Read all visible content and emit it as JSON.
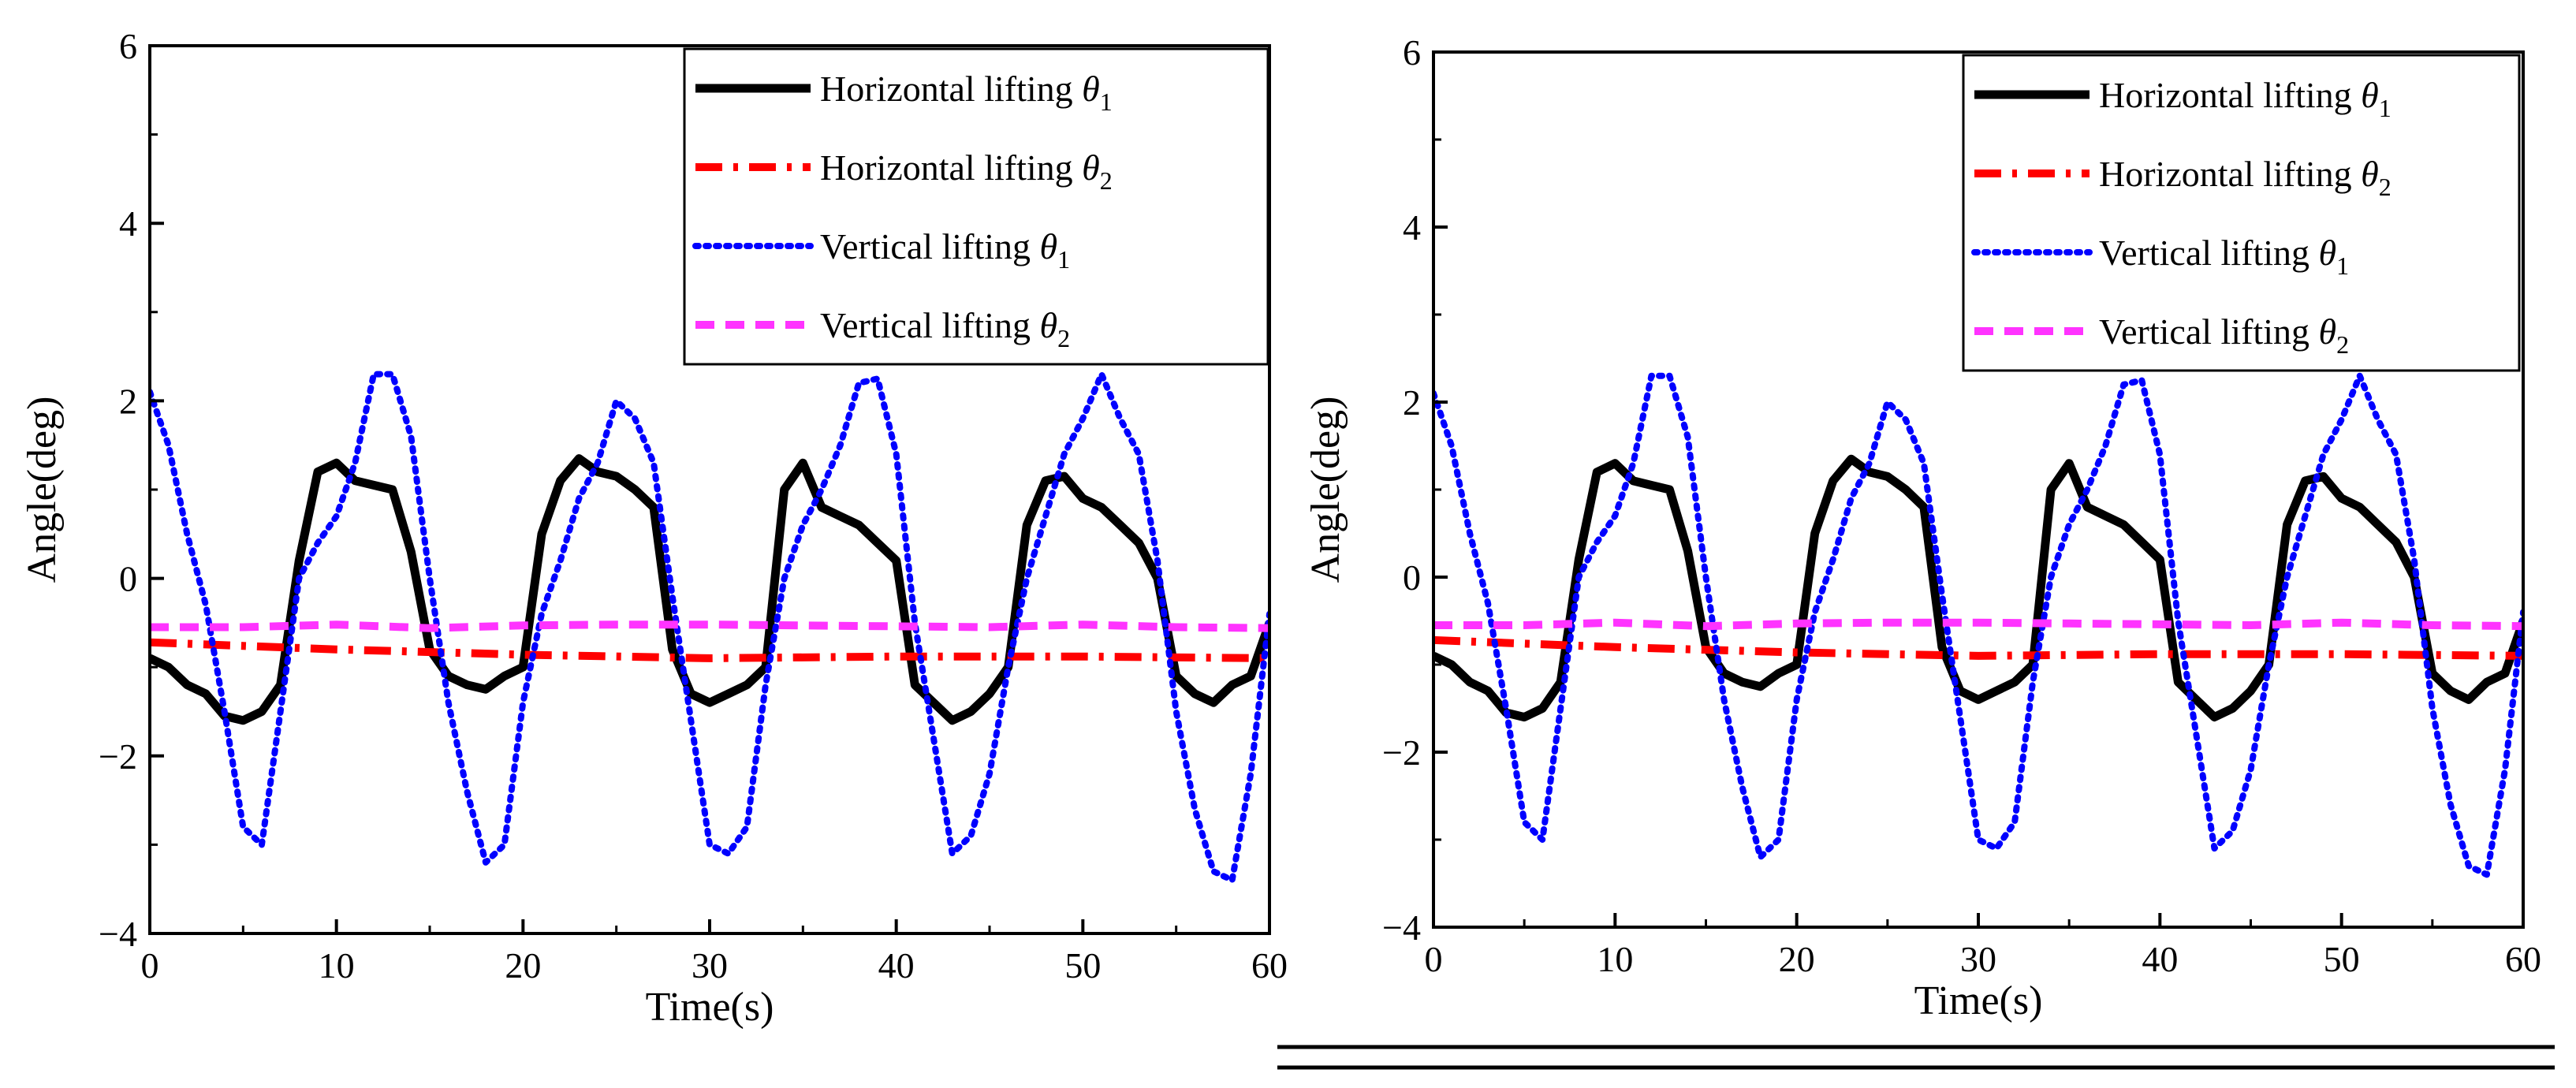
{
  "chart_data": [
    {
      "type": "line",
      "xlabel": "Time(s)",
      "ylabel": "Angle(deg)",
      "xlim": [
        0,
        60
      ],
      "ylim": [
        -4,
        6
      ],
      "xticks": [
        "0",
        "10",
        "20",
        "30",
        "40",
        "50",
        "60"
      ],
      "yticks": [
        "−4",
        "−2",
        "0",
        "2",
        "4",
        "6"
      ],
      "legend_position": "top-right",
      "series": [
        {
          "name": "Horizontal lifting",
          "symbol": "θ",
          "subscript": "1",
          "color": "#000000",
          "style": "solid",
          "x": [
            0,
            1,
            2,
            3,
            4,
            5,
            6,
            7,
            8,
            9,
            10,
            11,
            12,
            13,
            14,
            15,
            16,
            17,
            18,
            19,
            20,
            21,
            22,
            23,
            24,
            25,
            26,
            27,
            28,
            29,
            30,
            31,
            32,
            33,
            34,
            35,
            36,
            37,
            38,
            39,
            40,
            41,
            42,
            43,
            44,
            45,
            46,
            47,
            48,
            49,
            50,
            51,
            52,
            53,
            54,
            55,
            56,
            57,
            58,
            59,
            60
          ],
          "y": [
            -0.9,
            -1.0,
            -1.2,
            -1.3,
            -1.55,
            -1.6,
            -1.5,
            -1.2,
            0.2,
            1.2,
            1.3,
            1.1,
            1.05,
            1.0,
            0.3,
            -0.8,
            -1.1,
            -1.2,
            -1.25,
            -1.1,
            -1.0,
            0.5,
            1.1,
            1.35,
            1.2,
            1.15,
            1.0,
            0.8,
            -0.8,
            -1.3,
            -1.4,
            -1.3,
            -1.2,
            -1.0,
            1.0,
            1.3,
            0.8,
            0.7,
            0.6,
            0.4,
            0.2,
            -1.2,
            -1.4,
            -1.6,
            -1.5,
            -1.3,
            -1.0,
            0.6,
            1.1,
            1.15,
            0.9,
            0.8,
            0.6,
            0.4,
            0.0,
            -1.1,
            -1.3,
            -1.4,
            -1.2,
            -1.1,
            -0.5
          ]
        },
        {
          "name": "Horizontal lifting",
          "symbol": "θ",
          "subscript": "2",
          "color": "#ff0000",
          "style": "dashdot",
          "x": [
            0,
            10,
            20,
            30,
            40,
            50,
            60
          ],
          "y": [
            -0.72,
            -0.8,
            -0.86,
            -0.9,
            -0.88,
            -0.88,
            -0.9
          ]
        },
        {
          "name": "Vertical lifting",
          "symbol": "θ",
          "subscript": "1",
          "color": "#0000ff",
          "style": "dotted",
          "x": [
            0,
            1,
            2,
            3,
            4,
            5,
            6,
            7,
            8,
            9,
            10,
            11,
            12,
            13,
            14,
            15,
            16,
            17,
            18,
            19,
            20,
            21,
            22,
            23,
            24,
            25,
            26,
            27,
            28,
            29,
            30,
            31,
            32,
            33,
            34,
            35,
            36,
            37,
            38,
            39,
            40,
            41,
            42,
            43,
            44,
            45,
            46,
            47,
            48,
            49,
            50,
            51,
            52,
            53,
            54,
            55,
            56,
            57,
            58,
            59,
            60
          ],
          "y": [
            2.1,
            1.5,
            0.5,
            -0.3,
            -1.5,
            -2.8,
            -3.0,
            -1.5,
            0.0,
            0.4,
            0.7,
            1.3,
            2.3,
            2.3,
            1.6,
            0.0,
            -1.4,
            -2.4,
            -3.2,
            -3.0,
            -1.4,
            -0.4,
            0.2,
            0.9,
            1.3,
            2.0,
            1.8,
            1.3,
            -0.2,
            -1.6,
            -3.0,
            -3.1,
            -2.8,
            -1.2,
            0.0,
            0.6,
            1.0,
            1.5,
            2.2,
            2.25,
            1.4,
            -0.5,
            -1.8,
            -3.1,
            -2.9,
            -2.2,
            -1.0,
            0.0,
            0.7,
            1.4,
            1.8,
            2.3,
            1.8,
            1.4,
            0.2,
            -1.5,
            -2.6,
            -3.3,
            -3.4,
            -2.2,
            -0.4
          ]
        },
        {
          "name": "Vertical lifting",
          "symbol": "θ",
          "subscript": "2",
          "color": "#ff33ff",
          "style": "dashed",
          "x": [
            0,
            5,
            10,
            15,
            20,
            25,
            30,
            35,
            40,
            45,
            50,
            55,
            60
          ],
          "y": [
            -0.55,
            -0.55,
            -0.52,
            -0.56,
            -0.53,
            -0.52,
            -0.52,
            -0.53,
            -0.54,
            -0.55,
            -0.52,
            -0.55,
            -0.56
          ]
        }
      ]
    },
    {
      "type": "line",
      "xlabel": "Time(s)",
      "ylabel": "Angle(deg)",
      "xlim": [
        0,
        60
      ],
      "ylim": [
        -4,
        6
      ],
      "xticks": [
        "0",
        "10",
        "20",
        "30",
        "40",
        "50",
        "60"
      ],
      "yticks": [
        "−4",
        "−2",
        "0",
        "2",
        "4",
        "6"
      ],
      "legend_position": "top-right",
      "series": [
        {
          "name": "Horizontal lifting",
          "symbol": "θ",
          "subscript": "1",
          "color": "#000000",
          "style": "solid",
          "x": [
            0,
            1,
            2,
            3,
            4,
            5,
            6,
            7,
            8,
            9,
            10,
            11,
            12,
            13,
            14,
            15,
            16,
            17,
            18,
            19,
            20,
            21,
            22,
            23,
            24,
            25,
            26,
            27,
            28,
            29,
            30,
            31,
            32,
            33,
            34,
            35,
            36,
            37,
            38,
            39,
            40,
            41,
            42,
            43,
            44,
            45,
            46,
            47,
            48,
            49,
            50,
            51,
            52,
            53,
            54,
            55,
            56,
            57,
            58,
            59,
            60
          ],
          "y": [
            -0.9,
            -1.0,
            -1.2,
            -1.3,
            -1.55,
            -1.6,
            -1.5,
            -1.2,
            0.2,
            1.2,
            1.3,
            1.1,
            1.05,
            1.0,
            0.3,
            -0.8,
            -1.1,
            -1.2,
            -1.25,
            -1.1,
            -1.0,
            0.5,
            1.1,
            1.35,
            1.2,
            1.15,
            1.0,
            0.8,
            -0.8,
            -1.3,
            -1.4,
            -1.3,
            -1.2,
            -1.0,
            1.0,
            1.3,
            0.8,
            0.7,
            0.6,
            0.4,
            0.2,
            -1.2,
            -1.4,
            -1.6,
            -1.5,
            -1.3,
            -1.0,
            0.6,
            1.1,
            1.15,
            0.9,
            0.8,
            0.6,
            0.4,
            0.0,
            -1.1,
            -1.3,
            -1.4,
            -1.2,
            -1.1,
            -0.5
          ]
        },
        {
          "name": "Horizontal lifting",
          "symbol": "θ",
          "subscript": "2",
          "color": "#ff0000",
          "style": "dashdot",
          "x": [
            0,
            10,
            20,
            30,
            40,
            50,
            60
          ],
          "y": [
            -0.72,
            -0.8,
            -0.86,
            -0.9,
            -0.88,
            -0.88,
            -0.9
          ]
        },
        {
          "name": "Vertical lifting",
          "symbol": "θ",
          "subscript": "1",
          "color": "#0000ff",
          "style": "dotted",
          "x": [
            0,
            1,
            2,
            3,
            4,
            5,
            6,
            7,
            8,
            9,
            10,
            11,
            12,
            13,
            14,
            15,
            16,
            17,
            18,
            19,
            20,
            21,
            22,
            23,
            24,
            25,
            26,
            27,
            28,
            29,
            30,
            31,
            32,
            33,
            34,
            35,
            36,
            37,
            38,
            39,
            40,
            41,
            42,
            43,
            44,
            45,
            46,
            47,
            48,
            49,
            50,
            51,
            52,
            53,
            54,
            55,
            56,
            57,
            58,
            59,
            60
          ],
          "y": [
            2.1,
            1.5,
            0.5,
            -0.3,
            -1.5,
            -2.8,
            -3.0,
            -1.5,
            0.0,
            0.4,
            0.7,
            1.3,
            2.3,
            2.3,
            1.6,
            0.0,
            -1.4,
            -2.4,
            -3.2,
            -3.0,
            -1.4,
            -0.4,
            0.2,
            0.9,
            1.3,
            2.0,
            1.8,
            1.3,
            -0.2,
            -1.6,
            -3.0,
            -3.1,
            -2.8,
            -1.2,
            0.0,
            0.6,
            1.0,
            1.5,
            2.2,
            2.25,
            1.4,
            -0.5,
            -1.8,
            -3.1,
            -2.9,
            -2.2,
            -1.0,
            0.0,
            0.7,
            1.4,
            1.8,
            2.3,
            1.8,
            1.4,
            0.2,
            -1.5,
            -2.6,
            -3.3,
            -3.4,
            -2.2,
            -0.4
          ]
        },
        {
          "name": "Vertical lifting",
          "symbol": "θ",
          "subscript": "2",
          "color": "#ff33ff",
          "style": "dashed",
          "x": [
            0,
            5,
            10,
            15,
            20,
            25,
            30,
            35,
            40,
            45,
            50,
            55,
            60
          ],
          "y": [
            -0.55,
            -0.55,
            -0.52,
            -0.56,
            -0.53,
            -0.52,
            -0.52,
            -0.53,
            -0.54,
            -0.55,
            -0.52,
            -0.55,
            -0.56
          ]
        }
      ]
    }
  ]
}
